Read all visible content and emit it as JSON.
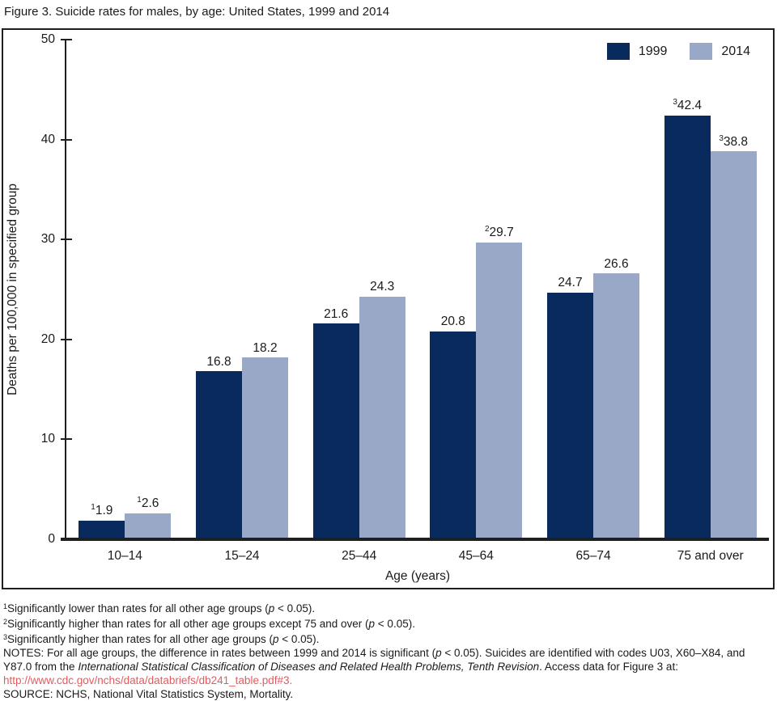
{
  "figure_title": "Figure 3. Suicide rates for males, by age: United States, 1999 and 2014",
  "chart_data": {
    "type": "bar",
    "title": "Figure 3. Suicide rates for males, by age: United States, 1999 and 2014",
    "categories": [
      "10–14",
      "15–24",
      "25–44",
      "45–64",
      "65–74",
      "75 and over"
    ],
    "series": [
      {
        "name": "1999",
        "color": "#082a5c",
        "values": [
          1.9,
          16.8,
          21.6,
          20.8,
          24.7,
          42.4
        ],
        "label_sups": [
          "1",
          "",
          "",
          "",
          "",
          "3"
        ]
      },
      {
        "name": "2014",
        "color": "#9aa8c8",
        "values": [
          2.6,
          18.2,
          24.3,
          29.7,
          26.6,
          38.8
        ],
        "label_sups": [
          "1",
          "",
          "",
          "2",
          "",
          "3"
        ]
      }
    ],
    "xlabel": "Age (years)",
    "ylabel": "Deaths per 100,000 in specified group",
    "ylim": [
      0,
      50
    ],
    "yticks": [
      0,
      10,
      20,
      30,
      40,
      50
    ],
    "grid": false,
    "legend_position": "top-right"
  },
  "footnotes": [
    {
      "sup": "1",
      "segments": [
        {
          "t": "Significantly lower than rates for all other age groups ("
        },
        {
          "t": "p",
          "i": true
        },
        {
          "t": " < 0.05)."
        }
      ]
    },
    {
      "sup": "2",
      "segments": [
        {
          "t": "Significantly higher than rates for all other age groups except 75 and over ("
        },
        {
          "t": "p",
          "i": true
        },
        {
          "t": " < 0.05)."
        }
      ]
    },
    {
      "sup": "3",
      "segments": [
        {
          "t": "Significantly higher than rates for all other age groups ("
        },
        {
          "t": "p",
          "i": true
        },
        {
          "t": " < 0.05)."
        }
      ]
    }
  ],
  "notes_segments": [
    {
      "t": "NOTES: For all age groups, the difference in rates between 1999 and 2014 is significant ("
    },
    {
      "t": "p",
      "i": true
    },
    {
      "t": " < 0.05). Suicides are identified with codes U03, X60–X84, and Y87.0 from the "
    },
    {
      "t": "International Statistical Classification of Diseases and Related Health Problems, Tenth Revision",
      "i": true
    },
    {
      "t": ". Access data for Figure 3 at:"
    }
  ],
  "access_link": {
    "text": "http://www.cdc.gov/nchs/data/databriefs/db241_table.pdf#3",
    "suffix": ".",
    "color": "#e8595d"
  },
  "source_line": "SOURCE: NCHS, National Vital Statistics System, Mortality."
}
